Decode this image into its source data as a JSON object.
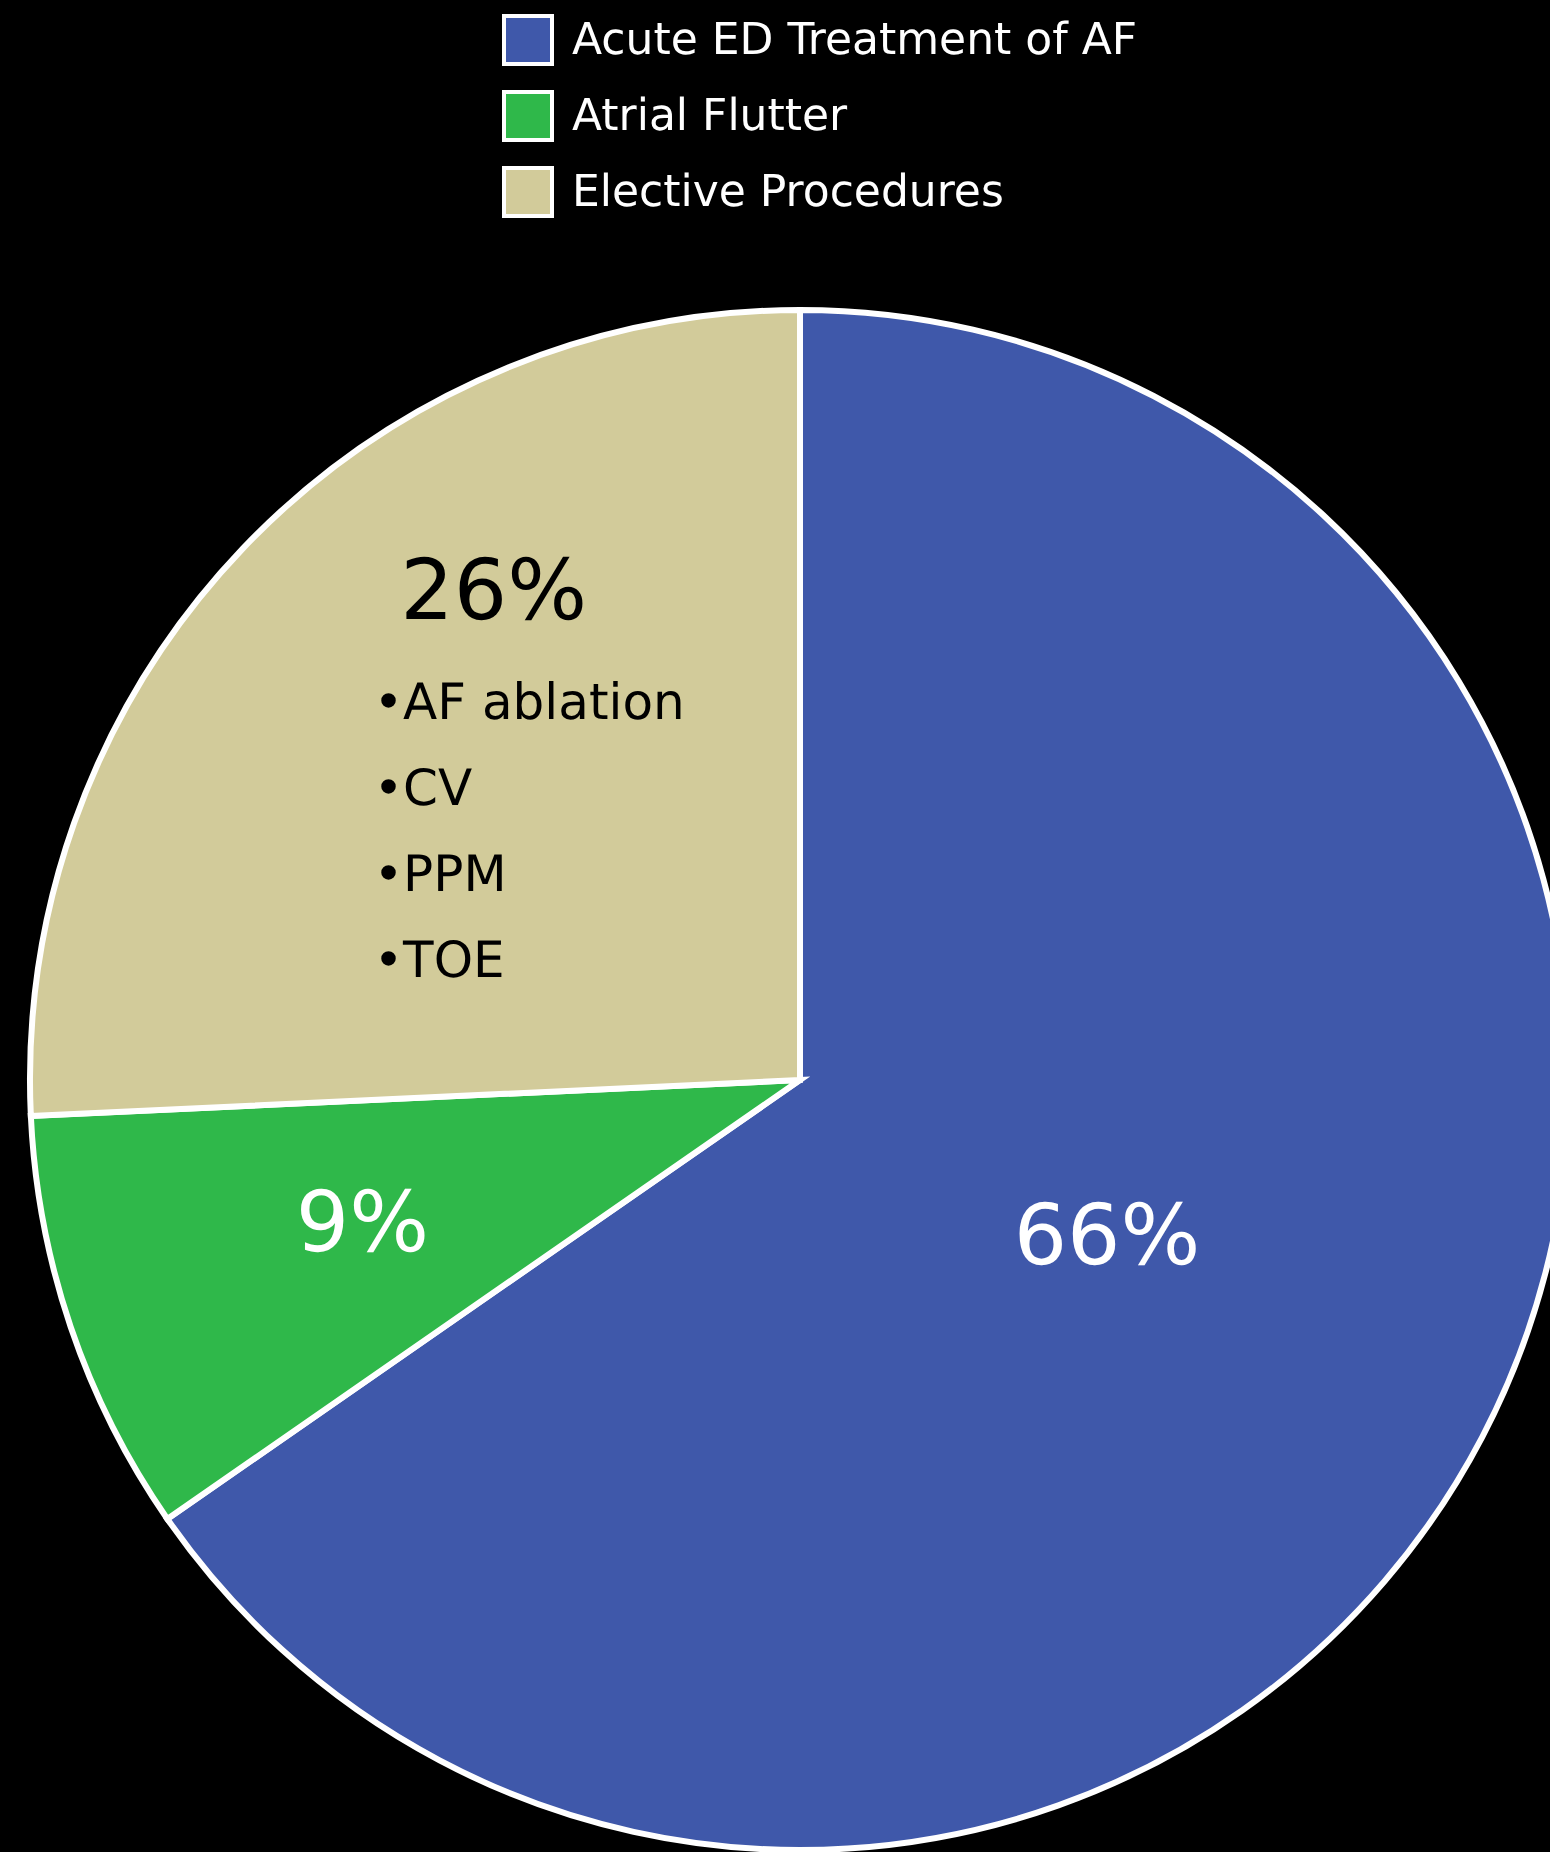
{
  "chart_data": {
    "type": "pie",
    "categories": [
      "Acute ED Treatment of AF",
      "Atrial Flutter",
      "Elective Procedures"
    ],
    "values": [
      66,
      9,
      26
    ],
    "colors": [
      "#3f58aa",
      "#2fb84a",
      "#d2cb9a"
    ],
    "value_labels": [
      "66%",
      "9%",
      "26%"
    ],
    "legend": "top",
    "annotations": [
      "•AF ablation",
      "•CV",
      "•PPM",
      "•TOE"
    ]
  }
}
